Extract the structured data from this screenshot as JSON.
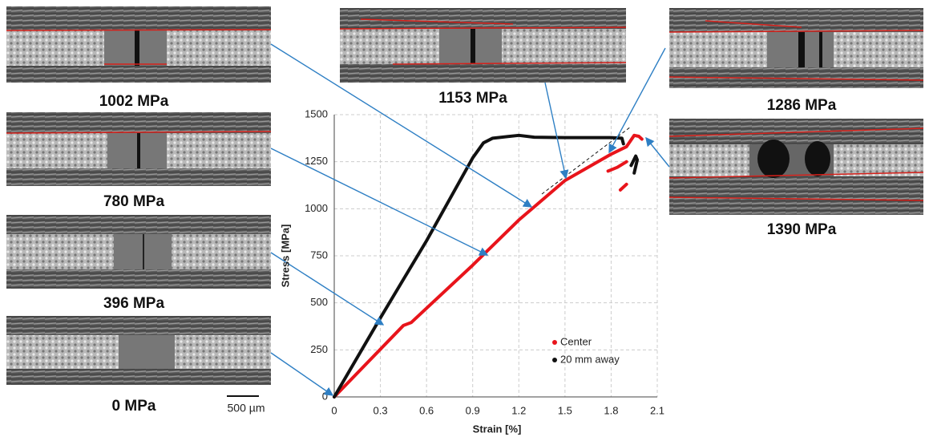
{
  "chart_data": {
    "type": "line",
    "xlabel": "Strain [%]",
    "ylabel": "Stress [MPa]",
    "xlim": [
      0,
      2.1
    ],
    "xticks": [
      0,
      0.3,
      0.6,
      0.9,
      1.2,
      1.5,
      1.8,
      2.1
    ],
    "ylim": [
      0,
      1500
    ],
    "yticks": [
      0,
      250,
      500,
      750,
      1000,
      1250,
      1500
    ],
    "grid": true,
    "legend": "lower right",
    "series": [
      {
        "name": "Center",
        "color": "#e8141b",
        "x": [
          0,
          0.45,
          0.5,
          0.9,
          1.2,
          1.5,
          1.8,
          1.9,
          1.95,
          1.98,
          2.0,
          1.9,
          1.78,
          1.84,
          1.9,
          1.88,
          1.86,
          1.9
        ],
        "values": [
          0,
          380,
          395,
          700,
          940,
          1150,
          1290,
          1330,
          1390,
          1385,
          1370,
          null,
          1200,
          1220,
          1250,
          null,
          1100,
          1130
        ]
      },
      {
        "name": "20 mm away",
        "color": "#111111",
        "x": [
          0,
          0.3,
          0.6,
          0.9,
          0.97,
          1.03,
          1.2,
          1.3,
          1.5,
          1.8,
          1.87,
          1.88,
          1.9,
          1.93,
          1.96,
          1.97,
          1.95
        ],
        "values": [
          0,
          420,
          830,
          1270,
          1350,
          1375,
          1390,
          1380,
          1378,
          1378,
          1375,
          1345,
          null,
          1230,
          1280,
          1260,
          1190
        ]
      }
    ],
    "annotations": [
      "1002 MPa",
      "780 MPa",
      "396 MPa",
      "0 MPa",
      "1153 MPa",
      "1286 MPa",
      "1390 MPa",
      "500 µm"
    ]
  }
}
